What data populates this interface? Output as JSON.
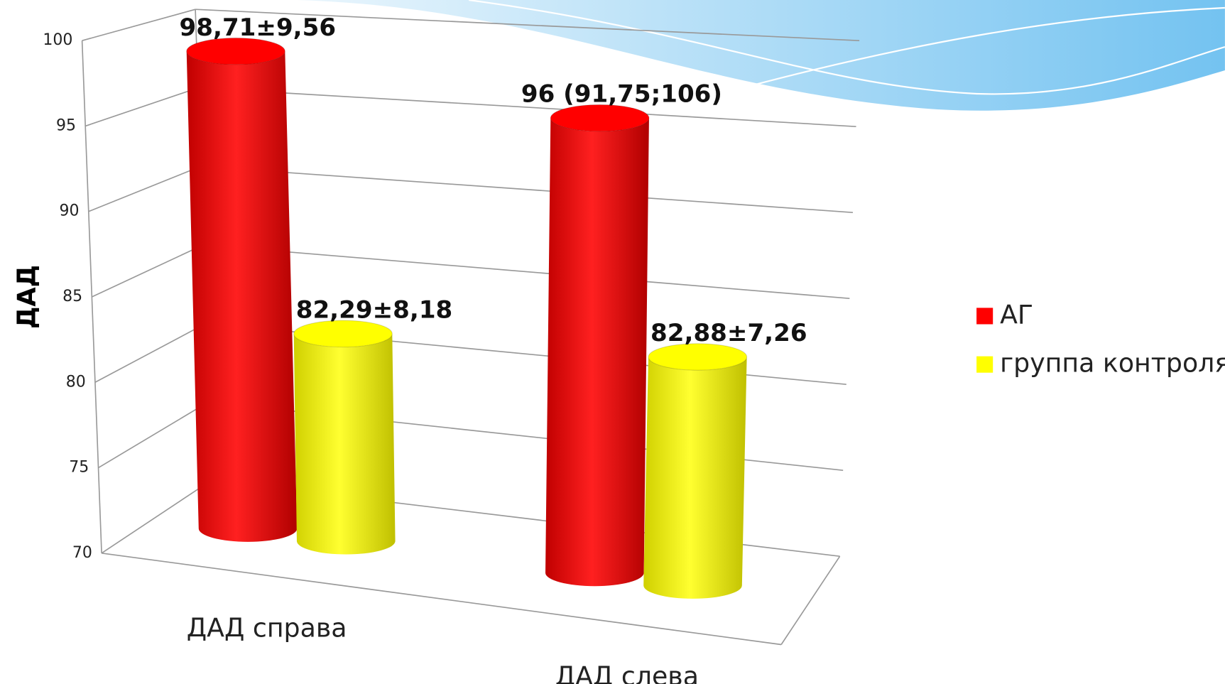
{
  "chart_data": {
    "type": "bar3d",
    "y_label": "ДАД",
    "categories": [
      "ДАД справа",
      "ДАД слева"
    ],
    "series": [
      {
        "name": "АГ",
        "color": "#ff0000",
        "values": [
          98.71,
          96
        ],
        "value_labels": [
          "98,71±9,56",
          "96 (91,75;106)"
        ]
      },
      {
        "name": "группа контроля",
        "color": "#ffff00",
        "values": [
          82.29,
          82.88
        ],
        "value_labels": [
          "82,29±8,18",
          "82,88±7,26"
        ]
      }
    ],
    "ylim": [
      70,
      100
    ],
    "yticks": [
      70,
      75,
      80,
      85,
      90,
      95,
      100
    ],
    "grid": true,
    "legend": "right"
  }
}
